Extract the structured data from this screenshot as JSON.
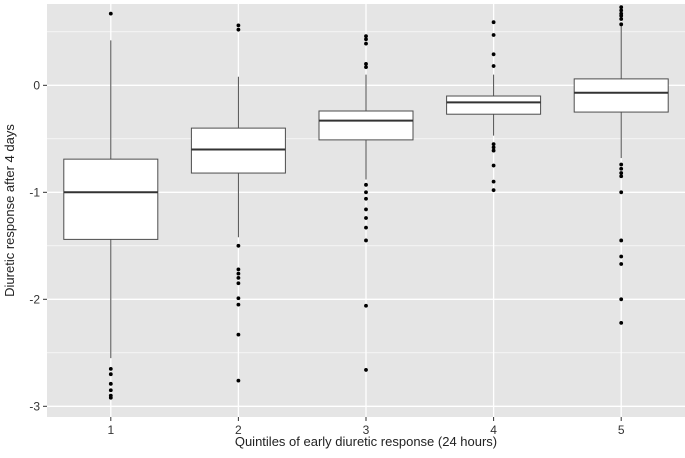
{
  "chart_data": {
    "type": "boxplot",
    "title": "",
    "xlabel": "Quintiles of early diuretic response (24 hours)",
    "ylabel": "Diuretic response after 4 days",
    "ylim": [
      -3.1,
      0.76
    ],
    "yticks": [
      -3,
      -2,
      -1,
      0
    ],
    "ytick_labels": [
      "-3",
      "-2",
      "-1",
      "0"
    ],
    "categories": [
      "1",
      "2",
      "3",
      "4",
      "5"
    ],
    "grid": true,
    "legend": "none",
    "colors": {
      "panel": "#e5e5e5",
      "grid": "#ffffff",
      "box_fill": "#ffffff",
      "box_stroke": "#4d4d4d",
      "median": "#333333",
      "outlier": "#000000"
    },
    "boxes": [
      {
        "category": "1",
        "whisker_low": -2.55,
        "q1": -1.44,
        "median": -1.0,
        "q3": -0.69,
        "whisker_high": 0.42,
        "outliers": [
          0.67,
          -2.65,
          -2.7,
          -2.79,
          -2.85,
          -2.9,
          -2.92
        ]
      },
      {
        "category": "2",
        "whisker_low": -1.42,
        "q1": -0.82,
        "median": -0.6,
        "q3": -0.4,
        "whisker_high": 0.08,
        "outliers": [
          0.56,
          0.52,
          -1.5,
          -1.72,
          -1.76,
          -1.8,
          -1.85,
          -1.99,
          -2.05,
          -2.33,
          -2.76
        ]
      },
      {
        "category": "3",
        "whisker_low": -0.88,
        "q1": -0.51,
        "median": -0.33,
        "q3": -0.24,
        "whisker_high": 0.1,
        "outliers": [
          0.46,
          0.43,
          0.39,
          0.2,
          0.17,
          -0.93,
          -1.0,
          -1.06,
          -1.16,
          -1.24,
          -1.33,
          -1.45,
          -2.06,
          -2.66
        ]
      },
      {
        "category": "4",
        "whisker_low": -0.47,
        "q1": -0.27,
        "median": -0.16,
        "q3": -0.1,
        "whisker_high": 0.1,
        "outliers": [
          0.59,
          0.47,
          0.29,
          0.18,
          -0.55,
          -0.58,
          -0.61,
          -0.75,
          -0.9,
          -0.98
        ]
      },
      {
        "category": "5",
        "whisker_low": -0.68,
        "q1": -0.25,
        "median": -0.07,
        "q3": 0.06,
        "whisker_high": 0.56,
        "outliers": [
          0.73,
          0.7,
          0.67,
          0.65,
          0.62,
          0.57,
          -0.74,
          -0.78,
          -0.82,
          -0.85,
          -1.0,
          -1.45,
          -1.6,
          -1.67,
          -2.0,
          -2.22
        ]
      }
    ]
  }
}
